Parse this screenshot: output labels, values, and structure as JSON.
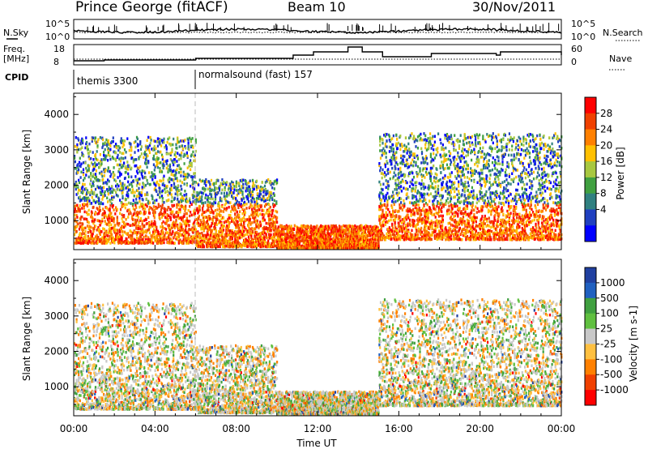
{
  "header": {
    "station": "Prince George (fitACF)",
    "beam": "Beam 10",
    "date": "30/Nov/2011"
  },
  "side_labels": {
    "nsky": "N.Sky",
    "nsearch": "N.Search",
    "freq_line1": "Freq.",
    "freq_line2": "[MHz]",
    "nave": "Nave",
    "cpid": "CPID"
  },
  "status_panel": {
    "nsky_top": "10^5",
    "nsky_bottom": "10^0",
    "nsearch_top": "10^5",
    "nsearch_bottom": "10^0",
    "freq_ticks": [
      "18",
      "8"
    ],
    "nave_ticks": [
      "60",
      "0"
    ]
  },
  "cpid": {
    "mode_a": "themis 3300",
    "mode_b": "normalsound (fast) 157",
    "switch_time_hours": 6.0
  },
  "chart_data": [
    {
      "type": "heatmap",
      "name": "power-panel",
      "ylabel": "Slant Range [km]",
      "ylim": [
        180,
        4600
      ],
      "yticks": [
        1000,
        2000,
        3000,
        4000
      ],
      "colorbar": {
        "label": "Power [dB]",
        "ticks": [
          "28",
          "24",
          "20",
          "16",
          "12",
          "8",
          "4"
        ],
        "colors": [
          "#ff0000",
          "#f04000",
          "#ff8000",
          "#ffc000",
          "#a8c840",
          "#40a040",
          "#308080",
          "#2040c0",
          "#0000ff"
        ]
      },
      "scatter_regions": [
        {
          "t_start": 0.0,
          "t_end": 6.0,
          "r_low": 400,
          "r_high": 3400,
          "level": "high"
        },
        {
          "t_start": 6.0,
          "t_end": 10.0,
          "r_low": 300,
          "r_high": 2200,
          "level": "mid"
        },
        {
          "t_start": 10.0,
          "t_end": 15.0,
          "r_low": 250,
          "r_high": 900,
          "level": "mid"
        },
        {
          "t_start": 15.0,
          "t_end": 24.0,
          "r_low": 500,
          "r_high": 3500,
          "level": "high"
        }
      ]
    },
    {
      "type": "heatmap",
      "name": "velocity-panel",
      "xlabel": "Time UT",
      "ylabel": "Slant Range [km]",
      "ylim": [
        180,
        4600
      ],
      "yticks": [
        1000,
        2000,
        3000,
        4000
      ],
      "xticks": [
        "00:00",
        "04:00",
        "08:00",
        "12:00",
        "16:00",
        "20:00",
        "00:00"
      ],
      "colorbar": {
        "label": "Velocity [m s-1]",
        "ticks": [
          "1000",
          "500",
          "100",
          "25",
          "-25",
          "-100",
          "-500",
          "-1000"
        ],
        "colors": [
          "#2040a0",
          "#2060c0",
          "#40a040",
          "#60c040",
          "#c8c8c8",
          "#ffc040",
          "#ff8000",
          "#f04000",
          "#ff0000"
        ]
      },
      "scatter_regions": [
        {
          "t_start": 0.0,
          "t_end": 6.0,
          "r_low": 400,
          "r_high": 3400,
          "level": "mixed"
        },
        {
          "t_start": 6.0,
          "t_end": 10.0,
          "r_low": 300,
          "r_high": 2200,
          "level": "mixed"
        },
        {
          "t_start": 10.0,
          "t_end": 15.0,
          "r_low": 250,
          "r_high": 900,
          "level": "mixed"
        },
        {
          "t_start": 15.0,
          "t_end": 24.0,
          "r_low": 500,
          "r_high": 3500,
          "level": "mixed"
        }
      ]
    }
  ]
}
